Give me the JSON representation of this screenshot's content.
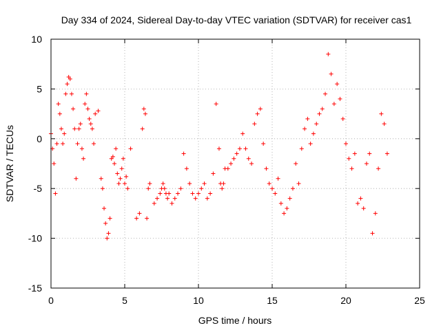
{
  "chart_data": {
    "type": "scatter",
    "title": "Day 334 of 2024, Sidereal Day-to-day VTEC variation (SDTVAR) for receiver cas1",
    "xlabel": "GPS time / hours",
    "ylabel": "SDTVAR / TECUs",
    "xlim": [
      0,
      25
    ],
    "ylim": [
      -15,
      10
    ],
    "xticks": [
      "0",
      "5",
      "10",
      "15",
      "20",
      "25"
    ],
    "yticks": [
      "10",
      "5",
      "0",
      "-5",
      "-10",
      "-15"
    ],
    "xtick_values": [
      0,
      5,
      10,
      15,
      20,
      25
    ],
    "ytick_values": [
      10,
      5,
      0,
      -5,
      -10,
      -15
    ],
    "grid": true,
    "marker": "+",
    "color": "#ff0000",
    "series": [
      {
        "name": "SDTVAR",
        "x": [
          0.0,
          0.1,
          0.2,
          0.3,
          0.4,
          0.5,
          0.6,
          0.7,
          0.8,
          0.9,
          1.0,
          1.1,
          1.2,
          1.3,
          1.4,
          1.5,
          1.6,
          1.7,
          1.8,
          1.9,
          2.0,
          2.1,
          2.2,
          2.3,
          2.4,
          2.5,
          2.6,
          2.7,
          2.8,
          2.9,
          3.0,
          3.2,
          3.4,
          3.5,
          3.6,
          3.7,
          3.8,
          3.9,
          4.0,
          4.1,
          4.2,
          4.3,
          4.4,
          4.5,
          4.6,
          4.7,
          4.8,
          4.9,
          5.0,
          5.1,
          5.2,
          5.4,
          5.8,
          6.0,
          6.2,
          6.3,
          6.4,
          6.5,
          6.6,
          6.7,
          7.0,
          7.2,
          7.4,
          7.5,
          7.6,
          7.7,
          7.8,
          7.9,
          8.0,
          8.2,
          8.4,
          8.6,
          8.8,
          9.0,
          9.2,
          9.4,
          9.6,
          9.8,
          10.0,
          10.2,
          10.4,
          10.6,
          10.8,
          11.0,
          11.2,
          11.4,
          11.5,
          11.6,
          11.7,
          11.8,
          12.0,
          12.2,
          12.4,
          12.6,
          12.8,
          13.0,
          13.2,
          13.4,
          13.6,
          13.8,
          14.0,
          14.2,
          14.4,
          14.6,
          14.8,
          15.0,
          15.2,
          15.4,
          15.6,
          15.8,
          16.0,
          16.2,
          16.4,
          16.6,
          16.8,
          17.0,
          17.2,
          17.4,
          17.6,
          17.8,
          18.0,
          18.2,
          18.4,
          18.6,
          18.8,
          19.0,
          19.2,
          19.4,
          19.6,
          19.8,
          20.0,
          20.2,
          20.4,
          20.6,
          20.8,
          21.0,
          21.2,
          21.4,
          21.6,
          21.8,
          22.0,
          22.2,
          22.4,
          22.6,
          22.8
        ],
        "y": [
          0.5,
          -1.0,
          -2.5,
          -5.5,
          -0.5,
          3.5,
          2.5,
          1.0,
          -0.5,
          0.5,
          4.5,
          5.5,
          6.2,
          6.0,
          4.5,
          3.0,
          1.0,
          -4.0,
          -0.5,
          1.0,
          1.5,
          -1.0,
          -2.0,
          3.5,
          4.5,
          3.0,
          2.0,
          1.5,
          1.0,
          -0.5,
          2.5,
          2.8,
          -4.0,
          -5.0,
          -7.0,
          -8.5,
          -10.0,
          -9.5,
          -8.0,
          -2.0,
          -1.8,
          -2.5,
          -1.0,
          -3.5,
          -4.5,
          -4.0,
          -3.0,
          -2.0,
          -4.5,
          -3.8,
          -5.0,
          -1.0,
          -8.0,
          -7.5,
          1.0,
          3.0,
          2.5,
          -8.0,
          -5.0,
          -4.5,
          -6.5,
          -6.0,
          -5.5,
          -5.0,
          -4.5,
          -5.0,
          -5.5,
          -6.0,
          -5.5,
          -6.5,
          -6.0,
          -5.5,
          -5.0,
          -1.5,
          -3.0,
          -4.5,
          -5.5,
          -6.0,
          -5.5,
          -5.0,
          -4.5,
          -6.0,
          -5.5,
          -3.5,
          3.5,
          -1.0,
          -4.5,
          -5.0,
          -4.5,
          -3.0,
          -3.0,
          -2.5,
          -2.0,
          -1.5,
          -1.0,
          0.5,
          -1.0,
          -2.0,
          -2.5,
          1.5,
          2.5,
          3.0,
          -0.5,
          -3.0,
          -4.5,
          -5.0,
          -5.5,
          -4.0,
          -6.5,
          -7.5,
          -7.0,
          -6.0,
          -5.0,
          -2.5,
          -4.5,
          -1.0,
          1.0,
          2.0,
          -0.5,
          0.5,
          1.5,
          2.5,
          3.0,
          4.5,
          8.5,
          6.5,
          3.5,
          5.5,
          4.0,
          2.0,
          -0.5,
          -2.0,
          -3.0,
          -1.5,
          -6.5,
          -6.0,
          -7.0,
          -2.5,
          -1.5,
          -9.5,
          -7.5,
          -3.0,
          2.5,
          1.5,
          -1.5
        ]
      }
    ]
  }
}
